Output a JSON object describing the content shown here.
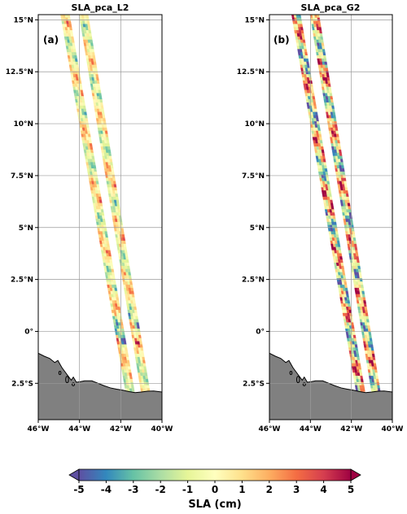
{
  "panels": [
    {
      "title": "SLA_pca_L2",
      "label": "(a)",
      "variant": "L2"
    },
    {
      "title": "SLA_pca_G2",
      "label": "(b)",
      "variant": "G2"
    }
  ],
  "map": {
    "lon_range": [
      -46,
      -40
    ],
    "lat_range": [
      -4.25,
      15.25
    ],
    "lon_ticks": [
      -46,
      -44,
      -42,
      -40
    ],
    "lon_tick_labels": [
      "46°W",
      "44°W",
      "42°W",
      "40°W"
    ],
    "lat_ticks": [
      -2.5,
      0,
      2.5,
      5,
      7.5,
      10,
      12.5,
      15
    ],
    "lat_tick_labels": [
      "2.5°S",
      "0°",
      "2.5°N",
      "5°N",
      "7.5°N",
      "10°N",
      "12.5°N",
      "15°N"
    ],
    "grid": true,
    "land_color": "#808080",
    "swath_tracks": [
      {
        "lon_north": -44.7,
        "lat_north": 15.25,
        "lon_south": -41.55,
        "lat_south": -2.9
      },
      {
        "lon_north": -43.8,
        "lat_north": 15.25,
        "lon_south": -40.8,
        "lat_south": -2.9
      }
    ]
  },
  "colorbar": {
    "label": "SLA (cm)",
    "min": -5,
    "max": 5,
    "ticks": [
      -5,
      -4,
      -3,
      -2,
      -1,
      0,
      1,
      2,
      3,
      4,
      5
    ],
    "tick_labels": [
      "-5",
      "-4",
      "-3",
      "-2",
      "-1",
      "0",
      "1",
      "2",
      "3",
      "4",
      "5"
    ],
    "extend": "both",
    "colormap": "Spectral_r",
    "colors": [
      "#5e4fa2",
      "#3288bd",
      "#66c2a5",
      "#abdda4",
      "#e6f598",
      "#ffffbf",
      "#fee08b",
      "#fdae61",
      "#f46d43",
      "#d53e4f",
      "#9e0142"
    ]
  }
}
